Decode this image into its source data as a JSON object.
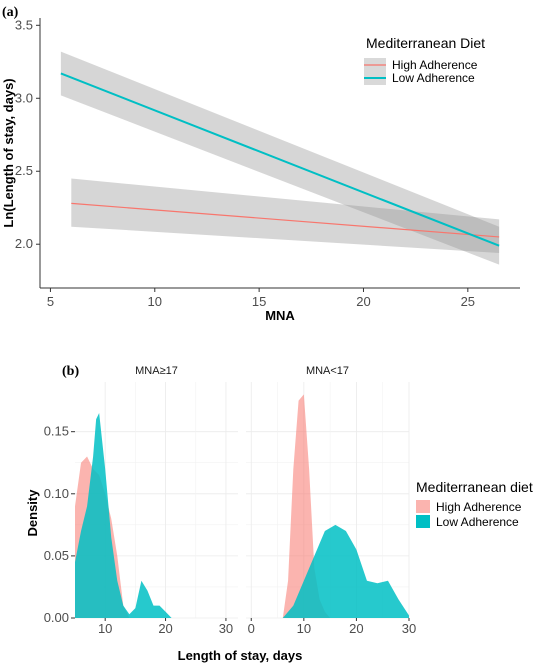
{
  "chart_data": [
    {
      "type": "line",
      "panel_label": "(a)",
      "xlabel": "MNA",
      "ylabel": "Ln(Length of stay, days)",
      "xlim": [
        4.5,
        27.5
      ],
      "ylim": [
        1.7,
        3.55
      ],
      "xticks": [
        5,
        10,
        15,
        20,
        25
      ],
      "yticks": [
        2.0,
        2.5,
        3.0,
        3.5
      ],
      "ytick_labels": [
        "2.0",
        "2.5",
        "3.0",
        "3.5"
      ],
      "legend": {
        "title": "Mediterranean Diet",
        "position": "top-right"
      },
      "series": [
        {
          "name": "High Adherence",
          "color": "#F8766D",
          "x": [
            6,
            26.5
          ],
          "y": [
            2.28,
            2.05
          ],
          "ci_lower": [
            2.12,
            1.94
          ],
          "ci_upper": [
            2.45,
            2.17
          ]
        },
        {
          "name": "Low Adherence",
          "color": "#00BFC4",
          "x": [
            5.5,
            26.5
          ],
          "y": [
            3.17,
            1.99
          ],
          "ci_lower": [
            3.02,
            1.86
          ],
          "ci_upper": [
            3.32,
            2.12
          ]
        }
      ],
      "grid": false
    },
    {
      "type": "area",
      "panel_label": "(b)",
      "xlabel": "Length of stay, days",
      "ylabel": "Density",
      "ylim": [
        0,
        0.19
      ],
      "yticks": [
        0.0,
        0.05,
        0.1,
        0.15
      ],
      "ytick_labels": [
        "0.00",
        "0.05",
        "0.10",
        "0.15"
      ],
      "legend": {
        "title": "Mediterranean diet",
        "position": "right"
      },
      "facets": [
        {
          "label": "MNA≥17",
          "xlim": [
            5,
            32
          ],
          "xticks": [
            10,
            20,
            30
          ],
          "series": [
            {
              "name": "High Adherence",
              "color": "#F8766D",
              "x": [
                5,
                6,
                7,
                8,
                9,
                10,
                11,
                12,
                13,
                14
              ],
              "y": [
                0.09,
                0.125,
                0.13,
                0.12,
                0.115,
                0.1,
                0.08,
                0.05,
                0.01,
                0.0
              ]
            },
            {
              "name": "Low Adherence",
              "color": "#00BFC4",
              "x": [
                5,
                6,
                7,
                8,
                8.5,
                9,
                10,
                11,
                12,
                13,
                14,
                15,
                16,
                17,
                18,
                19,
                20,
                21
              ],
              "y": [
                0.045,
                0.07,
                0.09,
                0.13,
                0.16,
                0.165,
                0.12,
                0.065,
                0.03,
                0.01,
                0.003,
                0.008,
                0.03,
                0.022,
                0.01,
                0.01,
                0.005,
                0.0
              ]
            }
          ]
        },
        {
          "label": "MNA<17",
          "xlim": [
            -1,
            30
          ],
          "xticks": [
            0,
            10,
            20,
            30
          ],
          "series": [
            {
              "name": "High Adherence",
              "color": "#F8766D",
              "x": [
                6,
                7,
                8,
                9,
                10,
                11,
                12,
                13,
                14,
                15
              ],
              "y": [
                0.0,
                0.03,
                0.12,
                0.175,
                0.18,
                0.12,
                0.04,
                0.015,
                0.005,
                0.0
              ]
            },
            {
              "name": "Low Adherence",
              "color": "#00BFC4",
              "x": [
                6,
                8,
                10,
                12,
                14,
                16,
                18,
                20,
                22,
                24,
                26,
                28,
                30
              ],
              "y": [
                0.0,
                0.01,
                0.03,
                0.05,
                0.07,
                0.075,
                0.07,
                0.055,
                0.03,
                0.028,
                0.03,
                0.015,
                0.002
              ]
            }
          ]
        }
      ],
      "grid": true
    }
  ]
}
